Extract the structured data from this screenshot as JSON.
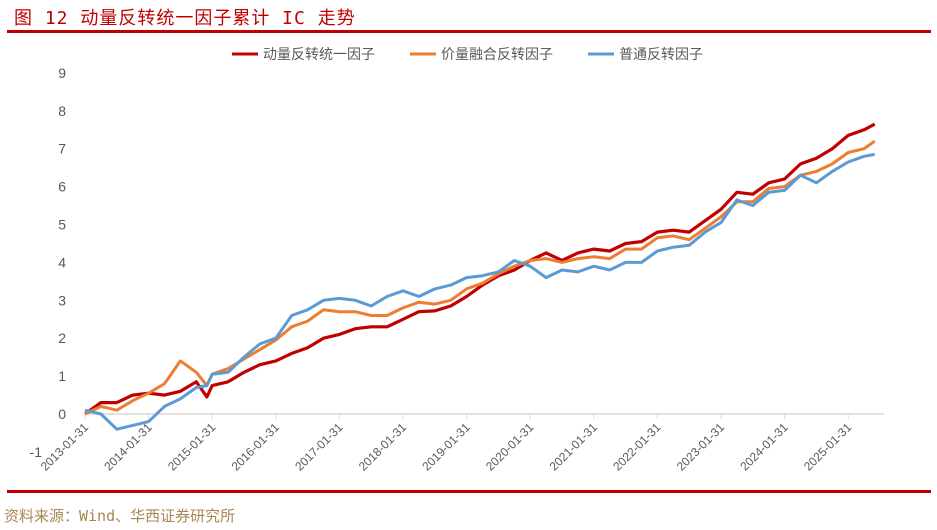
{
  "title": "图 12 动量反转统一因子累计 IC 走势",
  "source": "资料来源：Wind、华西证券研究所",
  "chart_data": {
    "type": "line",
    "title": "",
    "xlabel": "",
    "ylabel": "",
    "ylim": [
      -1,
      9
    ],
    "yticks": [
      "-1",
      "0",
      "1",
      "2",
      "3",
      "4",
      "5",
      "6",
      "7",
      "8",
      "9"
    ],
    "xtick_labels": [
      "2013-01-31",
      "2014-01-31",
      "2015-01-31",
      "2016-01-31",
      "2017-01-31",
      "2018-01-31",
      "2019-01-31",
      "2020-01-31",
      "2021-01-31",
      "2022-01-31",
      "2023-01-31",
      "2024-01-31",
      "2025-01-31"
    ],
    "grid": false,
    "legend_placement": "top",
    "x": [
      "2013-01",
      "2013-04",
      "2013-07",
      "2013-10",
      "2014-01",
      "2014-04",
      "2014-07",
      "2014-10",
      "2014-12",
      "2015-01",
      "2015-04",
      "2015-07",
      "2015-10",
      "2016-01",
      "2016-04",
      "2016-07",
      "2016-10",
      "2017-01",
      "2017-04",
      "2017-07",
      "2017-10",
      "2018-01",
      "2018-04",
      "2018-07",
      "2018-10",
      "2019-01",
      "2019-04",
      "2019-07",
      "2019-10",
      "2020-01",
      "2020-04",
      "2020-07",
      "2020-10",
      "2021-01",
      "2021-04",
      "2021-07",
      "2021-10",
      "2022-01",
      "2022-04",
      "2022-07",
      "2022-10",
      "2023-01",
      "2023-04",
      "2023-07",
      "2023-10",
      "2024-01",
      "2024-04",
      "2024-07",
      "2024-10",
      "2025-01",
      "2025-04",
      "2025-06"
    ],
    "series": [
      {
        "name": "动量反转统一因子",
        "color": "#c00000",
        "values": [
          0,
          0.3,
          0.3,
          0.5,
          0.55,
          0.5,
          0.6,
          0.85,
          0.45,
          0.75,
          0.85,
          1.1,
          1.3,
          1.4,
          1.6,
          1.75,
          2.0,
          2.1,
          2.25,
          2.3,
          2.3,
          2.5,
          2.7,
          2.72,
          2.85,
          3.1,
          3.4,
          3.65,
          3.8,
          4.05,
          4.25,
          4.05,
          4.25,
          4.35,
          4.3,
          4.5,
          4.55,
          4.8,
          4.85,
          4.8,
          5.1,
          5.4,
          5.85,
          5.8,
          6.1,
          6.2,
          6.6,
          6.75,
          7.0,
          7.35,
          7.5,
          7.65
        ]
      },
      {
        "name": "价量融合反转因子",
        "color": "#ed7d31",
        "values": [
          0,
          0.2,
          0.1,
          0.35,
          0.55,
          0.8,
          1.4,
          1.1,
          0.75,
          1.05,
          1.2,
          1.45,
          1.7,
          1.95,
          2.3,
          2.45,
          2.75,
          2.7,
          2.7,
          2.6,
          2.6,
          2.8,
          2.95,
          2.9,
          3.0,
          3.3,
          3.45,
          3.7,
          3.9,
          4.05,
          4.1,
          4.0,
          4.1,
          4.15,
          4.1,
          4.35,
          4.35,
          4.65,
          4.7,
          4.6,
          4.9,
          5.2,
          5.6,
          5.6,
          5.95,
          6.0,
          6.3,
          6.4,
          6.6,
          6.9,
          7.0,
          7.2
        ]
      },
      {
        "name": "普通反转因子",
        "color": "#5b9bd5",
        "values": [
          0.1,
          0.0,
          -0.4,
          -0.3,
          -0.2,
          0.2,
          0.4,
          0.7,
          0.75,
          1.05,
          1.1,
          1.5,
          1.85,
          2.0,
          2.6,
          2.75,
          3.0,
          3.05,
          3.0,
          2.85,
          3.1,
          3.25,
          3.1,
          3.3,
          3.4,
          3.6,
          3.65,
          3.75,
          4.05,
          3.9,
          3.6,
          3.8,
          3.75,
          3.9,
          3.8,
          4.0,
          4.0,
          4.3,
          4.4,
          4.45,
          4.8,
          5.05,
          5.65,
          5.5,
          5.85,
          5.9,
          6.3,
          6.1,
          6.4,
          6.65,
          6.8,
          6.85
        ]
      }
    ]
  }
}
